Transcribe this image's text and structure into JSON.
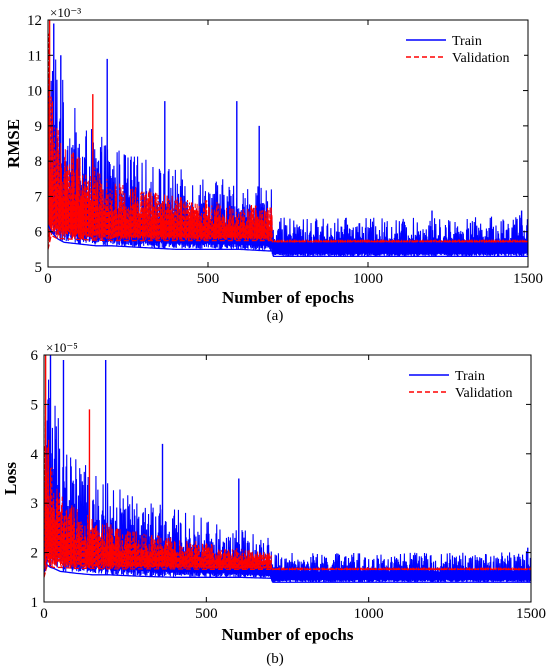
{
  "chart_data": [
    {
      "type": "line",
      "panel_label": "(a)",
      "xlabel": "Number of epochs",
      "ylabel": "RMSE",
      "y_exponent": "×10⁻³",
      "xlim": [
        0,
        1500
      ],
      "ylim": [
        5,
        12
      ],
      "xticks": [
        "0",
        "500",
        "1000",
        "1500"
      ],
      "yticks": [
        "5",
        "6",
        "7",
        "8",
        "9",
        "10",
        "11",
        "12"
      ],
      "grid": false,
      "legend_position": "top-right",
      "colors": {
        "train": "#0000ff",
        "validation": "#ff0000"
      },
      "series": [
        {
          "name": "Train",
          "style": "solid",
          "x": [
            0,
            10,
            20,
            30,
            50,
            100,
            150,
            200,
            300,
            400,
            500,
            600,
            700,
            701,
            900,
            1100,
            1300,
            1500
          ],
          "upper": [
            11.0,
            12.0,
            11.8,
            11.2,
            10.2,
            9.2,
            8.8,
            8.5,
            8.1,
            7.8,
            7.6,
            7.4,
            7.2,
            6.4,
            6.4,
            6.4,
            6.4,
            6.5
          ],
          "lower": [
            6.2,
            6.0,
            5.9,
            5.8,
            5.7,
            5.65,
            5.6,
            5.6,
            5.55,
            5.5,
            5.5,
            5.5,
            5.45,
            5.3,
            5.3,
            5.3,
            5.3,
            5.3
          ],
          "spikes": [
            {
              "x": 18,
              "y": 11.9
            },
            {
              "x": 40,
              "y": 11.0
            },
            {
              "x": 185,
              "y": 10.9
            },
            {
              "x": 365,
              "y": 9.7
            },
            {
              "x": 590,
              "y": 9.7
            },
            {
              "x": 660,
              "y": 9.0
            },
            {
              "x": 1200,
              "y": 6.6
            },
            {
              "x": 1480,
              "y": 6.6
            }
          ]
        },
        {
          "name": "Validation",
          "style": "dashed",
          "x": [
            0,
            10,
            20,
            30,
            50,
            100,
            150,
            200,
            300,
            400,
            500,
            600,
            700,
            701,
            1500
          ],
          "upper": [
            12.0,
            10.5,
            9.5,
            9.0,
            8.6,
            8.2,
            7.8,
            7.5,
            7.2,
            7.0,
            6.9,
            6.8,
            6.7,
            5.75,
            5.75
          ],
          "lower": [
            5.5,
            5.9,
            5.85,
            5.8,
            5.8,
            5.78,
            5.76,
            5.75,
            5.75,
            5.75,
            5.75,
            5.75,
            5.75,
            5.72,
            5.72
          ],
          "spikes": [
            {
              "x": 140,
              "y": 9.9
            },
            {
              "x": 5,
              "y": 12.0
            }
          ]
        }
      ]
    },
    {
      "type": "line",
      "panel_label": "(b)",
      "xlabel": "Number of epochs",
      "ylabel": "Loss",
      "y_exponent": "×10⁻⁵",
      "xlim": [
        0,
        1500
      ],
      "ylim": [
        1,
        6
      ],
      "xticks": [
        "0",
        "500",
        "1000",
        "1500"
      ],
      "yticks": [
        "1",
        "2",
        "3",
        "4",
        "5",
        "6"
      ],
      "grid": false,
      "legend_position": "top-right",
      "colors": {
        "train": "#0000ff",
        "validation": "#ff0000"
      },
      "series": [
        {
          "name": "Train",
          "style": "solid",
          "x": [
            0,
            10,
            20,
            30,
            50,
            100,
            150,
            200,
            300,
            400,
            500,
            600,
            700,
            701,
            900,
            1100,
            1300,
            1500
          ],
          "upper": [
            4.5,
            5.8,
            6.0,
            5.5,
            4.8,
            4.0,
            3.6,
            3.4,
            3.1,
            2.9,
            2.7,
            2.5,
            2.3,
            2.0,
            2.0,
            2.0,
            2.0,
            2.05
          ],
          "lower": [
            1.6,
            1.75,
            1.7,
            1.68,
            1.62,
            1.58,
            1.55,
            1.55,
            1.52,
            1.5,
            1.5,
            1.5,
            1.48,
            1.4,
            1.4,
            1.4,
            1.4,
            1.4
          ],
          "spikes": [
            {
              "x": 20,
              "y": 6.0
            },
            {
              "x": 60,
              "y": 5.9
            },
            {
              "x": 190,
              "y": 5.9
            },
            {
              "x": 365,
              "y": 4.2
            },
            {
              "x": 600,
              "y": 3.5
            },
            {
              "x": 1490,
              "y": 2.1
            }
          ]
        },
        {
          "name": "Validation",
          "style": "dashed",
          "x": [
            0,
            10,
            20,
            30,
            50,
            100,
            150,
            200,
            300,
            400,
            500,
            600,
            700,
            701,
            1500
          ],
          "upper": [
            6.0,
            4.5,
            4.0,
            3.6,
            3.2,
            2.9,
            2.7,
            2.6,
            2.4,
            2.3,
            2.2,
            2.1,
            2.0,
            1.68,
            1.68
          ],
          "lower": [
            1.5,
            1.75,
            1.72,
            1.7,
            1.7,
            1.68,
            1.68,
            1.67,
            1.67,
            1.67,
            1.66,
            1.66,
            1.66,
            1.66,
            1.66
          ],
          "spikes": [
            {
              "x": 140,
              "y": 4.9
            },
            {
              "x": 5,
              "y": 6.0
            }
          ]
        }
      ]
    }
  ]
}
